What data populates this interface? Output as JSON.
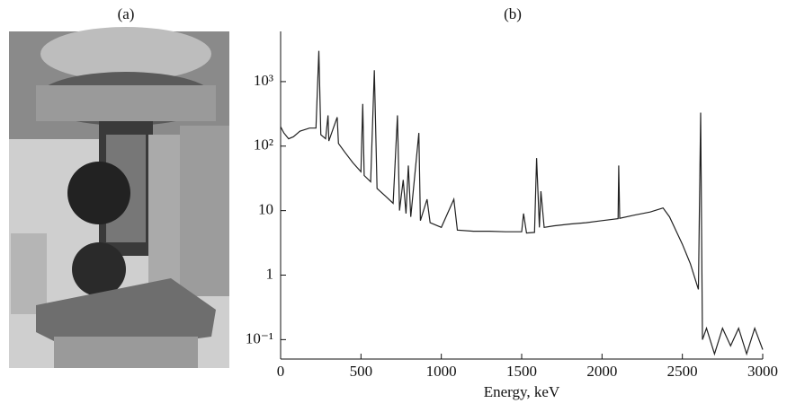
{
  "photo_label": "(a)",
  "chart_data": {
    "type": "line",
    "title": "(b)",
    "x_label": "Energy, keV",
    "color": "#222",
    "log_y": true,
    "x": [
      0,
      20,
      50,
      80,
      120,
      180,
      220,
      238,
      250,
      280,
      295,
      300,
      352,
      360,
      400,
      450,
      500,
      511,
      520,
      560,
      583,
      600,
      650,
      700,
      727,
      740,
      763,
      780,
      795,
      810,
      860,
      870,
      911,
      930,
      1000,
      1078,
      1100,
      1200,
      1300,
      1400,
      1500,
      1512,
      1530,
      1580,
      1593,
      1610,
      1620,
      1640,
      1700,
      1800,
      1900,
      2000,
      2100,
      2104,
      2110,
      2200,
      2300,
      2380,
      2420,
      2500,
      2550,
      2600,
      2614,
      2625,
      2650,
      2700,
      2750,
      2800,
      2850,
      2900,
      2950,
      3000
    ],
    "values": [
      200,
      160,
      130,
      140,
      170,
      190,
      190,
      3000,
      150,
      130,
      300,
      120,
      280,
      110,
      80,
      55,
      40,
      450,
      35,
      28,
      1500,
      22,
      17,
      13,
      300,
      10,
      30,
      9,
      50,
      8,
      160,
      7,
      15,
      6.5,
      5.5,
      15,
      5,
      4.8,
      4.8,
      4.7,
      4.7,
      9,
      4.5,
      4.6,
      65,
      5.5,
      20,
      5.5,
      5.8,
      6.2,
      6.5,
      7,
      7.5,
      50,
      7.6,
      8.5,
      9.5,
      11,
      8,
      3,
      1.5,
      0.6,
      330,
      0.1,
      0.15,
      0.06,
      0.15,
      0.08,
      0.15,
      0.06,
      0.15,
      0.07
    ],
    "xlim": [
      0,
      3000
    ],
    "xticks": [
      0,
      500,
      1000,
      1500,
      2000,
      2500,
      3000
    ],
    "ylim": [
      0.05,
      6000
    ],
    "yticks": [
      {
        "value": 0.1,
        "label": "10⁻¹"
      },
      1,
      10,
      {
        "value": 100,
        "label": "10²"
      },
      {
        "value": 1000,
        "label": "10³"
      }
    ]
  }
}
